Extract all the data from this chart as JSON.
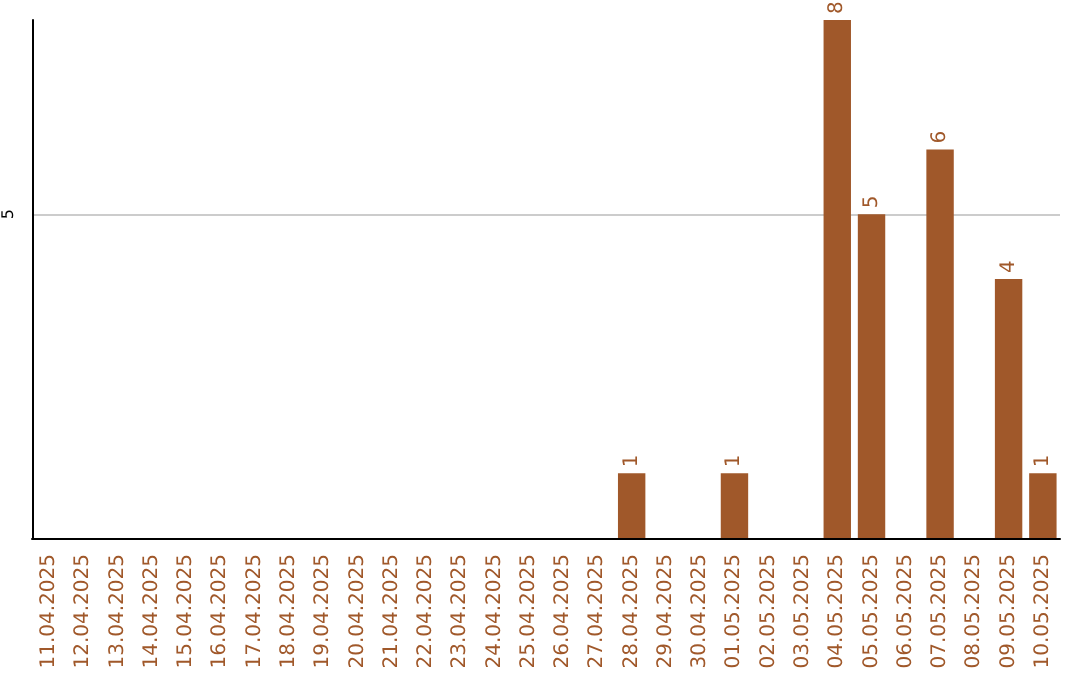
{
  "chart_data": {
    "type": "bar",
    "categories": [
      "11.04.2025",
      "12.04.2025",
      "13.04.2025",
      "14.04.2025",
      "15.04.2025",
      "16.04.2025",
      "17.04.2025",
      "18.04.2025",
      "19.04.2025",
      "20.04.2025",
      "21.04.2025",
      "22.04.2025",
      "23.04.2025",
      "24.04.2025",
      "25.04.2025",
      "26.04.2025",
      "27.04.2025",
      "28.04.2025",
      "29.04.2025",
      "30.04.2025",
      "01.05.2025",
      "02.05.2025",
      "03.05.2025",
      "04.05.2025",
      "05.05.2025",
      "06.05.2025",
      "07.05.2025",
      "08.05.2025",
      "09.05.2025",
      "10.05.2025"
    ],
    "values": [
      null,
      null,
      null,
      null,
      null,
      null,
      null,
      null,
      null,
      null,
      null,
      null,
      null,
      null,
      null,
      null,
      null,
      1,
      null,
      null,
      1,
      null,
      null,
      8,
      5,
      null,
      6,
      null,
      4,
      1
    ],
    "data_labels": true,
    "color": "#a0582a",
    "ylim": [
      0,
      8
    ],
    "yticks": [
      5
    ],
    "grid": "y"
  }
}
